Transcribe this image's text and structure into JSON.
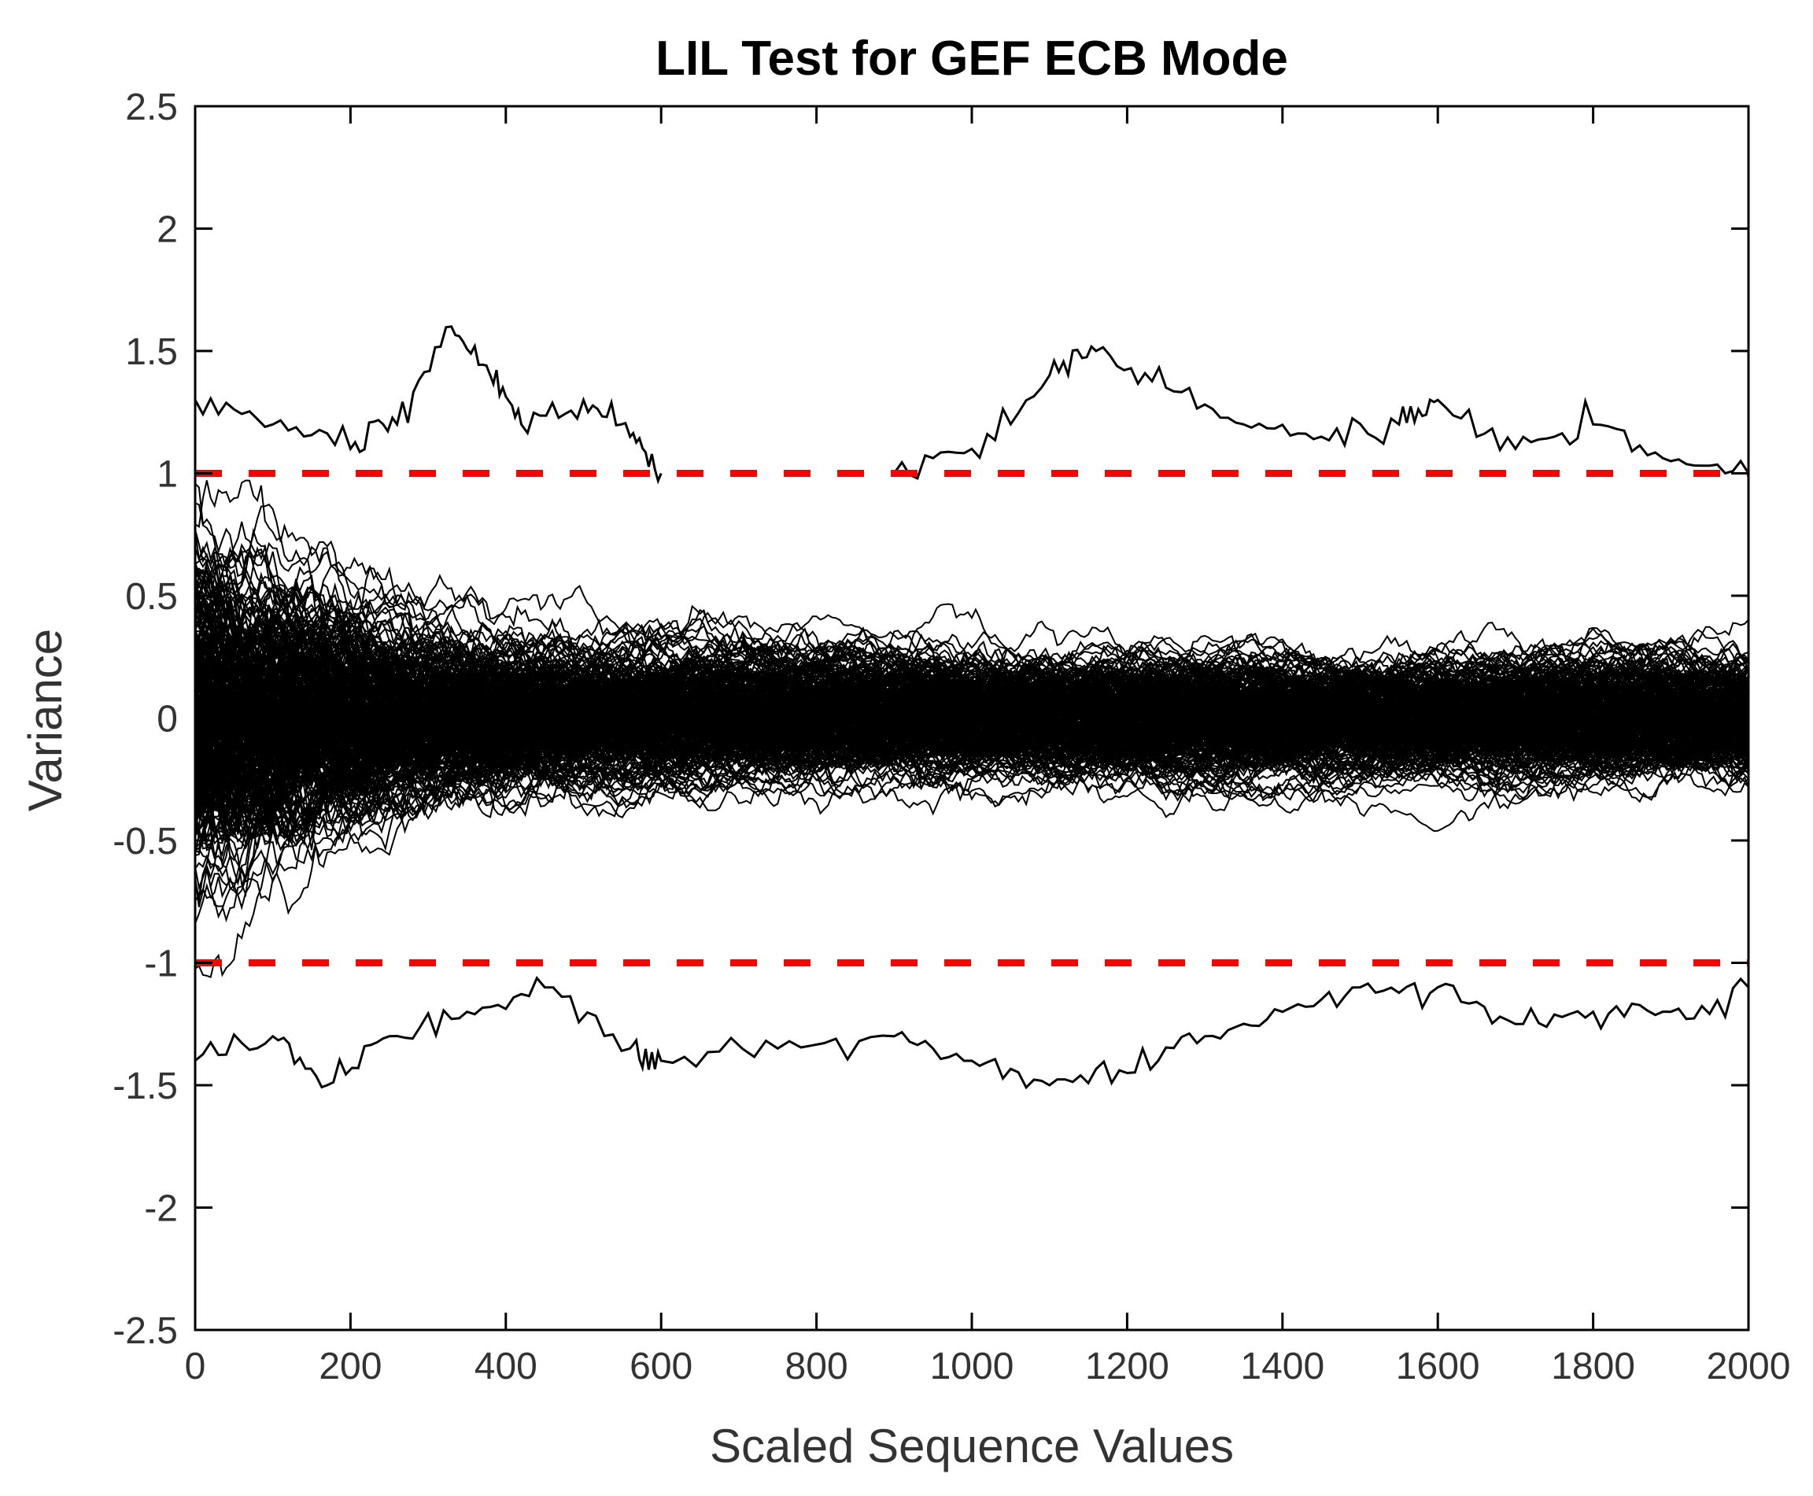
{
  "chart_data": {
    "type": "line",
    "title": "LIL Test for GEF ECB Mode",
    "xlabel": "Scaled Sequence Values",
    "ylabel": "Variance",
    "xlim": [
      0,
      2000
    ],
    "ylim": [
      -2.5,
      2.5
    ],
    "xticks": [
      "0",
      "200",
      "400",
      "600",
      "800",
      "1000",
      "1200",
      "1400",
      "1600",
      "1800",
      "2000"
    ],
    "yticks": [
      "2.5",
      "2",
      "1.5",
      "1",
      "0.5",
      "0",
      "-0.5",
      "-1",
      "-1.5",
      "-2",
      "-2.5"
    ],
    "grid": false,
    "series_count": 300,
    "series_color": "#000000",
    "series_description": "many random-walk LIL sequences, decaying amplitude",
    "reference_lines": [
      {
        "name": "upper-bound",
        "y": 1,
        "color": "#ff0000",
        "style": "dashed"
      },
      {
        "name": "lower-bound",
        "y": -1,
        "color": "#ff0000",
        "style": "dashed"
      }
    ],
    "highlighted_excursions": [
      {
        "x": [
          0,
          100,
          200,
          260,
          330,
          380,
          420,
          500,
          560,
          600
        ],
        "y": [
          1.3,
          1.2,
          1.1,
          1.2,
          1.6,
          1.4,
          1.2,
          1.3,
          1.15,
          1.0
        ]
      },
      {
        "x": [
          900,
          1000,
          1100,
          1160,
          1250,
          1350,
          1450,
          1550,
          1600,
          1700,
          1800,
          1900,
          2000
        ],
        "y": [
          1.0,
          1.1,
          1.4,
          1.5,
          1.35,
          1.2,
          1.15,
          1.2,
          1.3,
          1.1,
          1.2,
          1.05,
          1.0
        ]
      },
      {
        "x": [
          0,
          100,
          170,
          250,
          350,
          450,
          560,
          600,
          750,
          900,
          1000,
          1100,
          1200,
          1300,
          1400,
          1500,
          1600,
          1700,
          1800,
          1900,
          2000
        ],
        "y": [
          -1.4,
          -1.3,
          -1.5,
          -1.3,
          -1.2,
          -1.1,
          -1.35,
          -1.4,
          -1.35,
          -1.3,
          -1.4,
          -1.5,
          -1.45,
          -1.3,
          -1.2,
          -1.1,
          -1.1,
          -1.25,
          -1.2,
          -1.2,
          -1.1
        ]
      }
    ]
  }
}
